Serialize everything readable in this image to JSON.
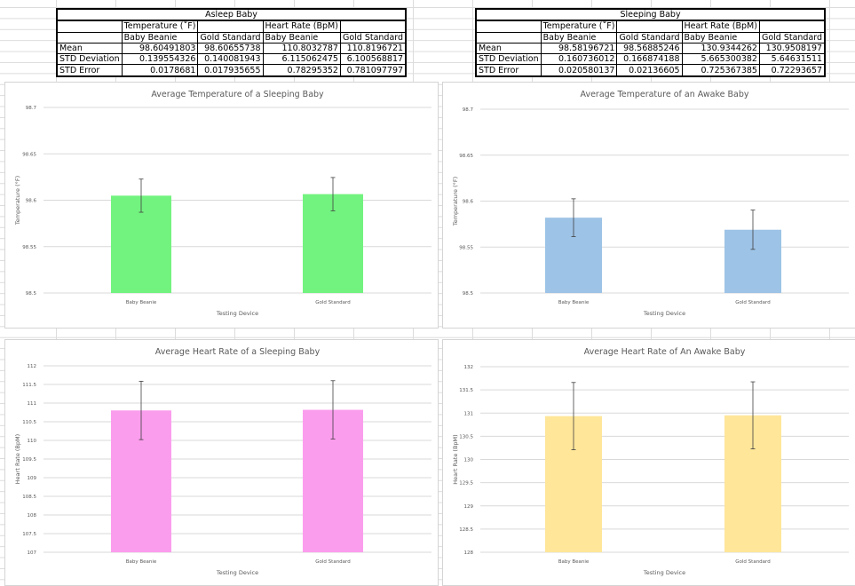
{
  "tables": [
    {
      "title": "Asleep Baby",
      "group1": "Temperature (˚F)",
      "group2": "Heart Rate (BpM)",
      "cols": [
        "Baby Beanie",
        "Gold Standard",
        "Baby Beanie",
        "Gold Standard"
      ],
      "rows": [
        {
          "label": "Mean",
          "values": [
            "98.60491803",
            "98.60655738",
            "110.8032787",
            "110.8196721"
          ]
        },
        {
          "label": "STD Deviation",
          "values": [
            "0.139554326",
            "0.140081943",
            "6.115062475",
            "6.100568817"
          ]
        },
        {
          "label": "STD Error",
          "values": [
            "0.0178681",
            "0.017935655",
            "0.78295352",
            "0.781097797"
          ]
        }
      ]
    },
    {
      "title": "Sleeping Baby",
      "group1": "Temperature (˚F)",
      "group2": "Heart Rate (BpM)",
      "cols": [
        "Baby Beanie",
        "Gold Standard",
        "Baby Beanie",
        "Gold Standard"
      ],
      "rows": [
        {
          "label": "Mean",
          "values": [
            "98.58196721",
            "98.56885246",
            "130.9344262",
            "130.9508197"
          ]
        },
        {
          "label": "STD Deviation",
          "values": [
            "0.160736012",
            "0.166874188",
            "5.665300382",
            "5.64631511"
          ]
        },
        {
          "label": "STD Error",
          "values": [
            "0.020580137",
            "0.02136605",
            "0.725367385",
            "0.72293657"
          ]
        }
      ]
    }
  ],
  "chart_data": [
    {
      "type": "bar",
      "title": "Average Temperature of a Sleeping Baby",
      "xlabel": "Testing Device",
      "ylabel": "Temperature (°F)",
      "categories": [
        "Baby Beanie",
        "Gold Standard"
      ],
      "values": [
        98.60491803,
        98.60655738
      ],
      "errors": [
        0.0178681,
        0.017935655
      ],
      "ylim": [
        98.5,
        98.7
      ],
      "ticks": [
        "98.5",
        "98.55",
        "98.6",
        "98.65",
        "98.7"
      ],
      "color": "#72f37f",
      "grid": true
    },
    {
      "type": "bar",
      "title": "Average Temperature of an Awake Baby",
      "xlabel": "Testing Device",
      "ylabel": "Temperature (°F)",
      "categories": [
        "Baby Beanie",
        "Gold Standard"
      ],
      "values": [
        98.58196721,
        98.56885246
      ],
      "errors": [
        0.020580137,
        0.02136605
      ],
      "ylim": [
        98.5,
        98.7
      ],
      "ticks": [
        "98.5",
        "98.55",
        "98.6",
        "98.65",
        "98.7"
      ],
      "color": "#9dc3e6",
      "grid": true
    },
    {
      "type": "bar",
      "title": "Average Heart Rate of a Sleeping Baby",
      "xlabel": "Testing Device",
      "ylabel": "Heart Rate (BpM)",
      "categories": [
        "Baby Beanie",
        "Gold Standard"
      ],
      "values": [
        110.8032787,
        110.8196721
      ],
      "errors": [
        0.78295352,
        0.781097797
      ],
      "ylim": [
        107,
        112
      ],
      "ticks": [
        "107",
        "107.5",
        "108",
        "108.5",
        "109",
        "109.5",
        "110",
        "110.5",
        "111",
        "111.5",
        "112"
      ],
      "color": "#fb9ded",
      "grid": true
    },
    {
      "type": "bar",
      "title": "Average Heart Rate of An Awake Baby",
      "xlabel": "Testing Device",
      "ylabel": "Heart Rate (BpM)",
      "categories": [
        "Baby Beanie",
        "Gold Standard"
      ],
      "values": [
        130.9344262,
        130.9508197
      ],
      "errors": [
        0.725367385,
        0.72293657
      ],
      "ylim": [
        128,
        132
      ],
      "ticks": [
        "128",
        "128.5",
        "129",
        "129.5",
        "130",
        "130.5",
        "131",
        "131.5",
        "132"
      ],
      "color": "#ffe699",
      "grid": true
    }
  ]
}
